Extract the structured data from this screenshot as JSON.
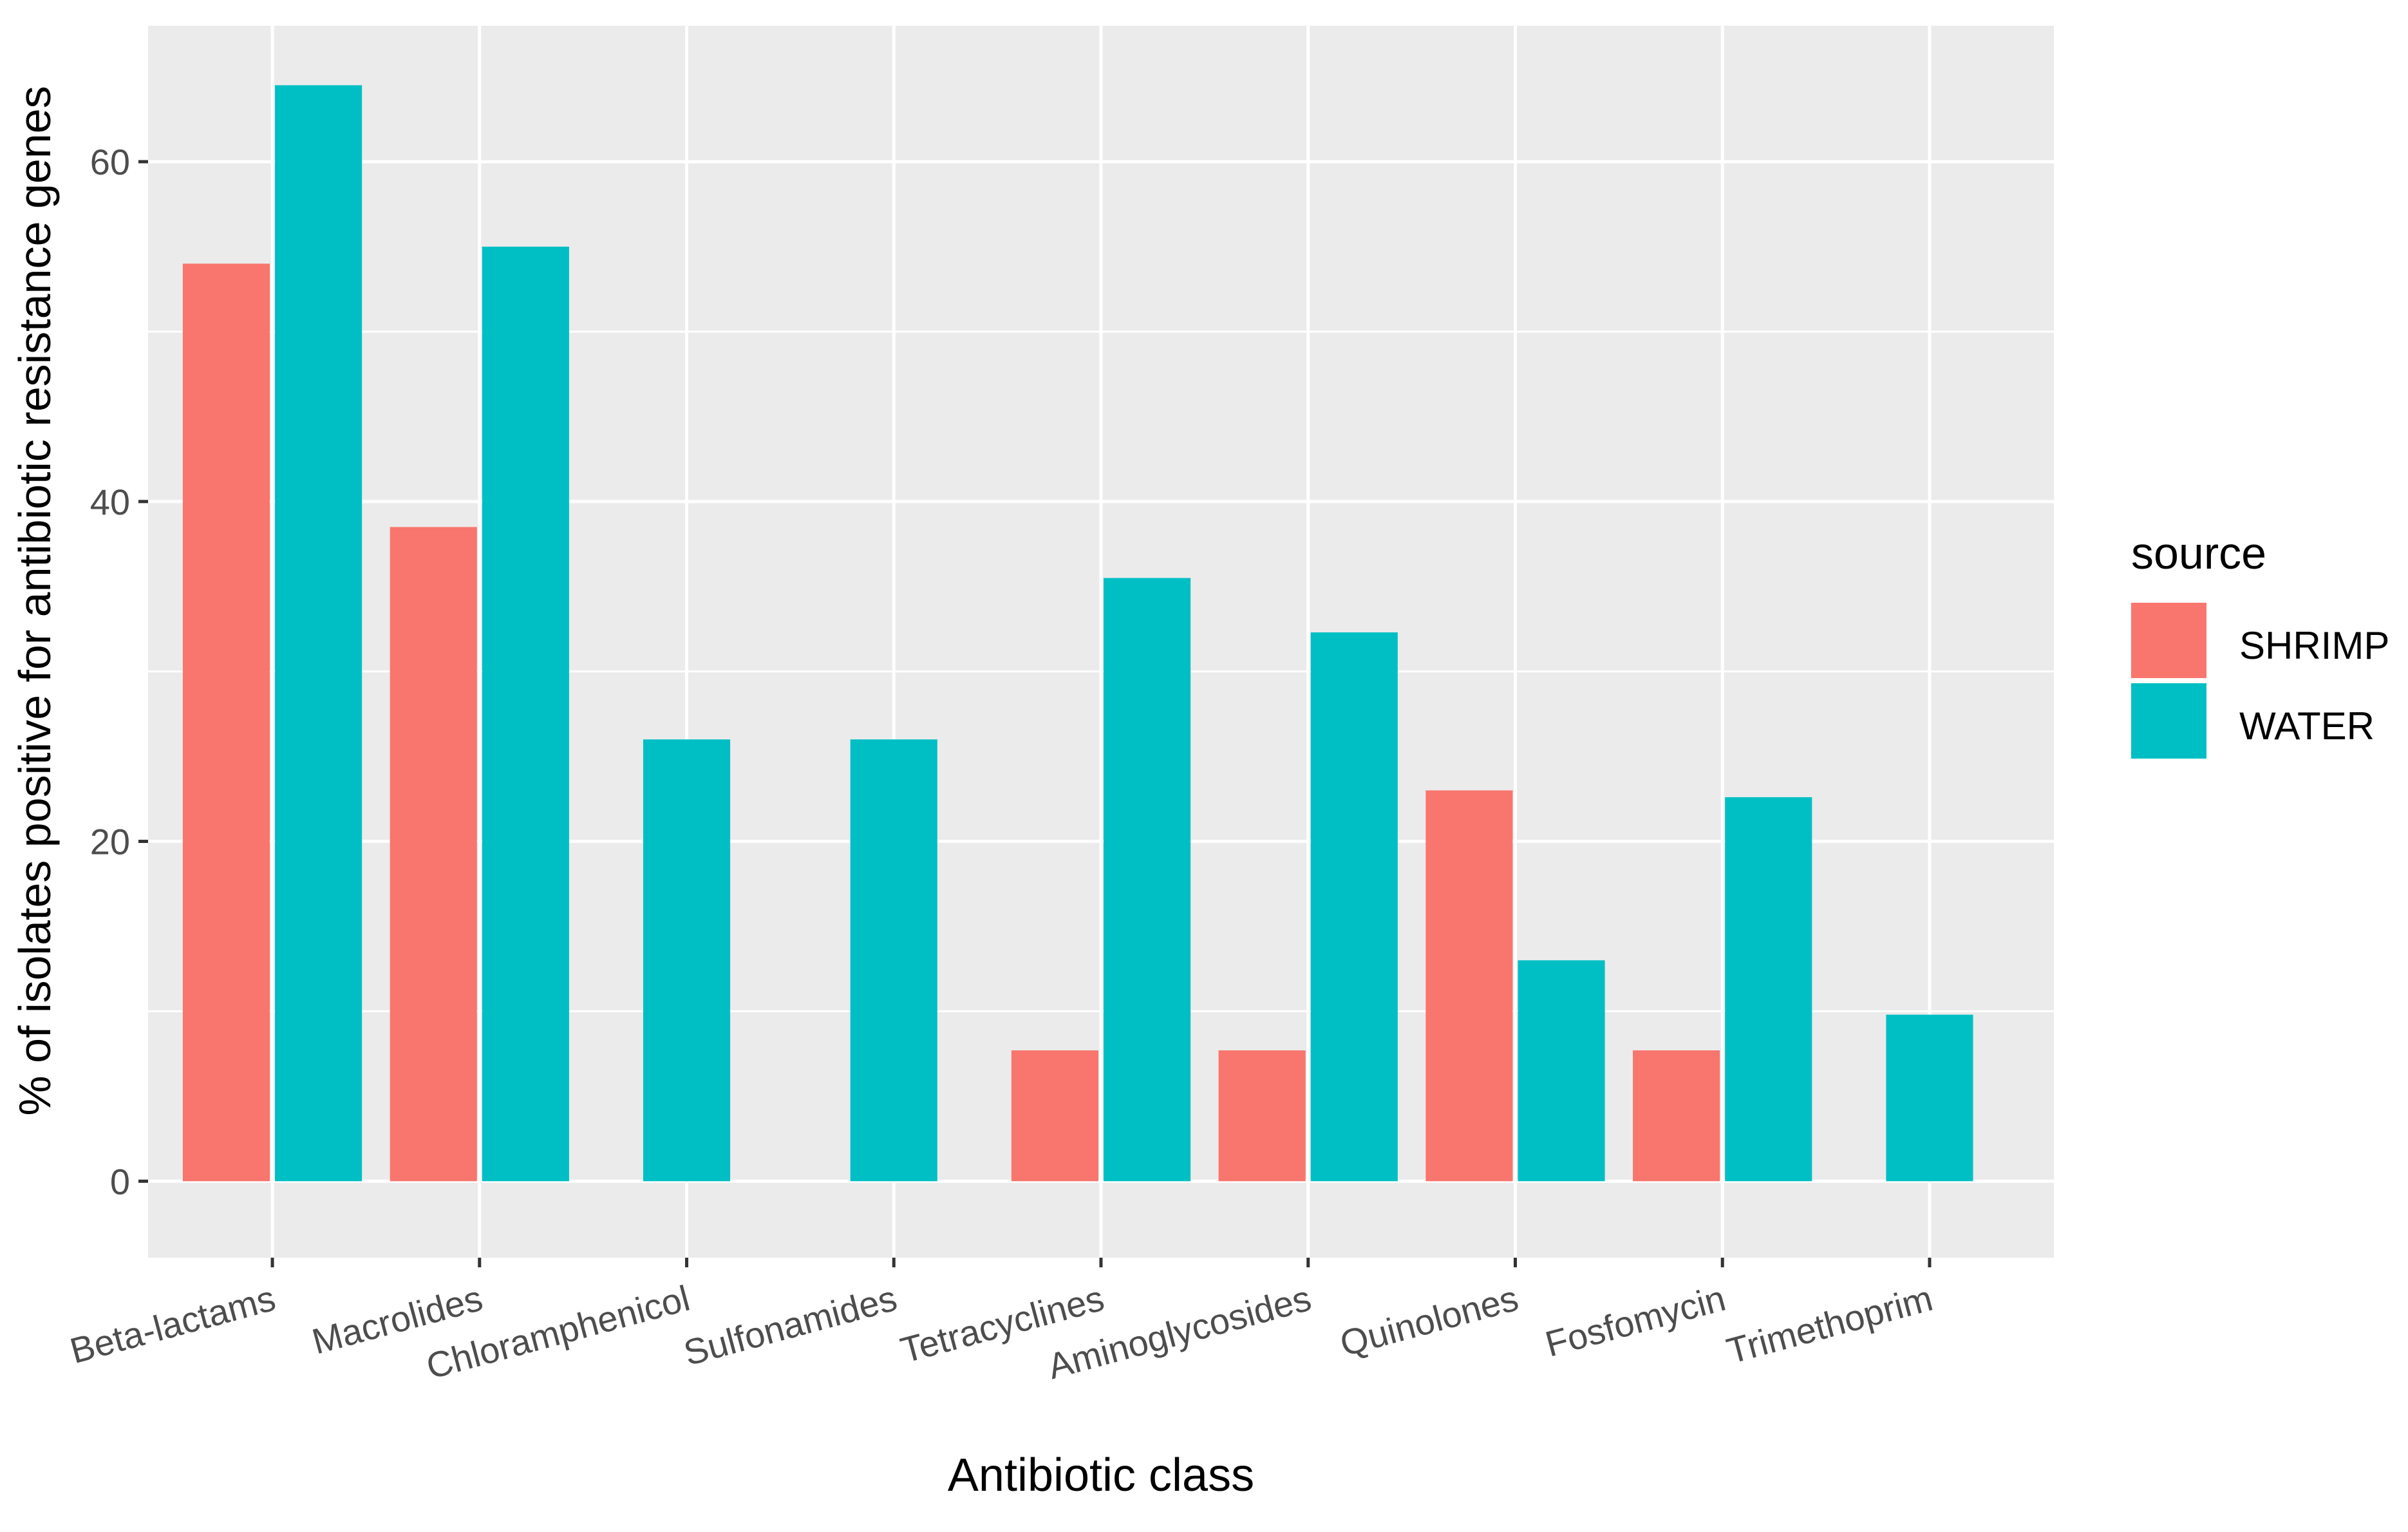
{
  "chart_data": {
    "type": "bar",
    "title": "",
    "xlabel": "Antibiotic class",
    "ylabel": "% of isolates positive for antibiotic resistance genes",
    "ylim": [
      -4.5,
      68
    ],
    "yticks": [
      0,
      20,
      40,
      60
    ],
    "categories": [
      "Beta-lactams",
      "Macrolides",
      "Chloramphenicol",
      "Sulfonamides",
      "Tetracyclines",
      "Aminoglycosides",
      "Quinolones",
      "Fosfomycin",
      "Trimethoprim"
    ],
    "series": [
      {
        "name": "SHRIMP",
        "color": "#F8766D",
        "values": [
          54,
          38.5,
          null,
          null,
          7.7,
          7.7,
          23,
          7.7,
          null
        ]
      },
      {
        "name": "WATER",
        "color": "#00BFC4",
        "values": [
          64.5,
          55,
          26,
          26,
          35.5,
          32.3,
          13,
          22.6,
          9.8
        ]
      }
    ],
    "legend": {
      "title": "source",
      "position": "right",
      "entries": [
        "SHRIMP",
        "WATER"
      ]
    },
    "grid": true,
    "panel_background": "#EBEBEB",
    "grid_color": "#FFFFFF"
  }
}
